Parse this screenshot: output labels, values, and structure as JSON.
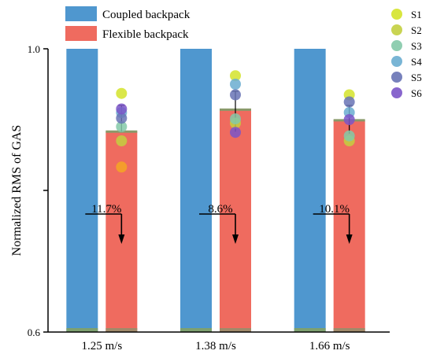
{
  "chart_data": {
    "type": "bar",
    "categories": [
      "1.25 m/s",
      "1.38 m/s",
      "1.66 m/s"
    ],
    "series": [
      {
        "name": "Coupled backpack",
        "color": "#4f97cf",
        "values": [
          1.0,
          1.0,
          1.0
        ]
      },
      {
        "name": "Flexible backpack",
        "color": "#ef6b5f",
        "values": [
          0.883,
          0.914,
          0.899
        ]
      }
    ],
    "reductions": [
      "11.7%",
      "8.6%",
      "10.1%"
    ],
    "subjects": [
      {
        "name": "S1",
        "color": "#d4e32a",
        "values": [
          0.937,
          0.962,
          0.935
        ]
      },
      {
        "name": "S2",
        "color": "#c3cf3f",
        "values": [
          0.87,
          0.895,
          0.87
        ]
      },
      {
        "name": "S3",
        "color": "#84c9a8",
        "values": [
          0.89,
          0.901,
          0.877
        ]
      },
      {
        "name": "S4",
        "color": "#6aadd0",
        "values": [
          0.91,
          0.95,
          0.91
        ]
      },
      {
        "name": "S5",
        "color": "#6873b5",
        "values": [
          0.902,
          0.935,
          0.925
        ]
      },
      {
        "name": "S6",
        "color": "#7b55c8",
        "values": [
          0.915,
          0.882,
          0.9
        ]
      }
    ],
    "extra_points": [
      {
        "category": "1.25 m/s",
        "value": 0.833,
        "color": "#f5a623"
      }
    ],
    "error_bars": [
      {
        "category": "1.25 m/s",
        "low": 0.883,
        "high": 0.92
      },
      {
        "category": "1.38 m/s",
        "low": 0.883,
        "high": 0.94
      },
      {
        "category": "1.66 m/s",
        "low": 0.88,
        "high": 0.92
      }
    ],
    "ylabel": "Normalized RMS of GAS",
    "xlabel": "",
    "ylim": [
      0.6,
      1.0
    ],
    "y_tick_labels": [
      "0.6",
      "1.0"
    ],
    "legend_position": "top"
  }
}
